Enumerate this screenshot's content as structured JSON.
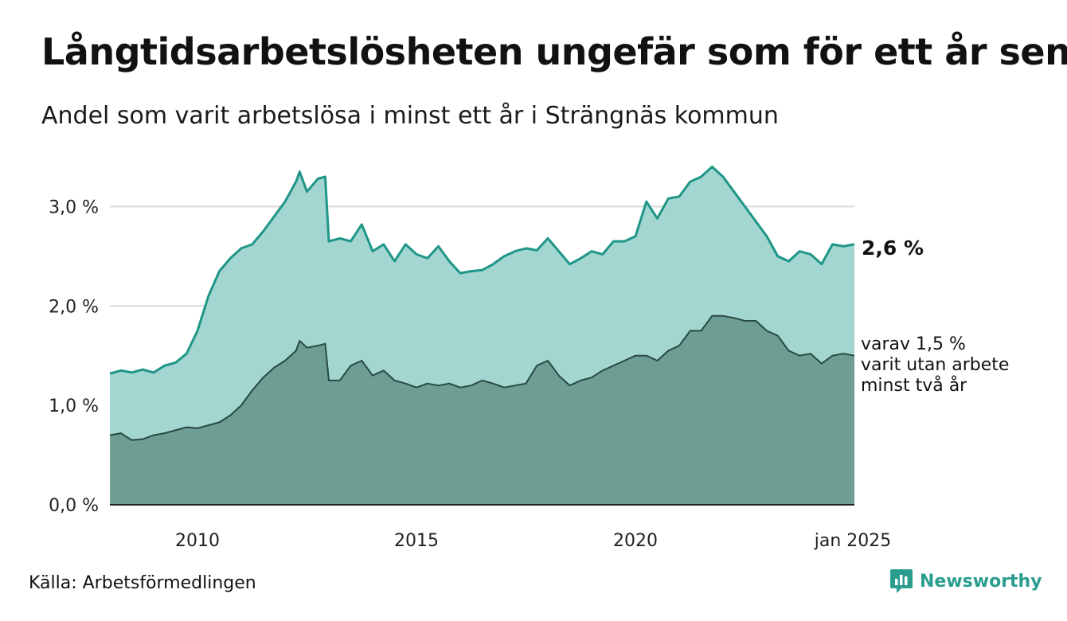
{
  "title": "Långtidsarbetslösheten ungefär som för ett år sen",
  "subtitle": "Andel som varit arbetslösa i minst ett år i Strängnäs kommun",
  "source": "Källa: Arbetsförmedlingen",
  "brand": {
    "name": "Newsworthy",
    "icon": "bar-chart-logo-icon",
    "color": "#2a9d8f"
  },
  "colors": {
    "total_line": "#1f9688",
    "total_fill": "#a3d6d0",
    "long_line": "#274a43",
    "long_fill": "#6e9d94",
    "grid": "#d9d9d9",
    "axis": "#222222"
  },
  "chart_data": {
    "type": "area",
    "xlim": [
      "2008-01",
      "2025-01"
    ],
    "ylim": [
      0,
      3.5
    ],
    "yticks": [
      0,
      1,
      2,
      3
    ],
    "ytick_labels": [
      "0,0 %",
      "1,0 %",
      "2,0 %",
      "3,0 %"
    ],
    "xticks": [
      "2010-01",
      "2015-01",
      "2020-01",
      "2025-01"
    ],
    "xtick_labels": [
      "2010",
      "2015",
      "2020",
      "jan 2025"
    ],
    "grid": true,
    "series": [
      {
        "key": "total",
        "end_label": "2,6 %",
        "points": [
          [
            "2008-01",
            1.32
          ],
          [
            "2008-04",
            1.35
          ],
          [
            "2008-07",
            1.33
          ],
          [
            "2008-10",
            1.36
          ],
          [
            "2009-01",
            1.33
          ],
          [
            "2009-04",
            1.4
          ],
          [
            "2009-07",
            1.43
          ],
          [
            "2009-10",
            1.52
          ],
          [
            "2010-01",
            1.75
          ],
          [
            "2010-04",
            2.1
          ],
          [
            "2010-07",
            2.35
          ],
          [
            "2010-10",
            2.48
          ],
          [
            "2011-01",
            2.58
          ],
          [
            "2011-04",
            2.62
          ],
          [
            "2011-07",
            2.75
          ],
          [
            "2011-10",
            2.9
          ],
          [
            "2012-01",
            3.05
          ],
          [
            "2012-04",
            3.25
          ],
          [
            "2012-05",
            3.35
          ],
          [
            "2012-07",
            3.15
          ],
          [
            "2012-10",
            3.28
          ],
          [
            "2012-12",
            3.3
          ],
          [
            "2013-01",
            2.65
          ],
          [
            "2013-04",
            2.68
          ],
          [
            "2013-07",
            2.65
          ],
          [
            "2013-10",
            2.82
          ],
          [
            "2014-01",
            2.55
          ],
          [
            "2014-04",
            2.62
          ],
          [
            "2014-07",
            2.45
          ],
          [
            "2014-10",
            2.62
          ],
          [
            "2015-01",
            2.52
          ],
          [
            "2015-04",
            2.48
          ],
          [
            "2015-07",
            2.6
          ],
          [
            "2015-10",
            2.45
          ],
          [
            "2016-01",
            2.33
          ],
          [
            "2016-04",
            2.35
          ],
          [
            "2016-07",
            2.36
          ],
          [
            "2016-10",
            2.42
          ],
          [
            "2017-01",
            2.5
          ],
          [
            "2017-04",
            2.55
          ],
          [
            "2017-07",
            2.58
          ],
          [
            "2017-10",
            2.56
          ],
          [
            "2018-01",
            2.68
          ],
          [
            "2018-04",
            2.55
          ],
          [
            "2018-07",
            2.42
          ],
          [
            "2018-10",
            2.48
          ],
          [
            "2019-01",
            2.55
          ],
          [
            "2019-04",
            2.52
          ],
          [
            "2019-07",
            2.65
          ],
          [
            "2019-10",
            2.65
          ],
          [
            "2020-01",
            2.7
          ],
          [
            "2020-04",
            3.05
          ],
          [
            "2020-07",
            2.88
          ],
          [
            "2020-10",
            3.08
          ],
          [
            "2021-01",
            3.1
          ],
          [
            "2021-04",
            3.25
          ],
          [
            "2021-07",
            3.3
          ],
          [
            "2021-10",
            3.4
          ],
          [
            "2022-01",
            3.3
          ],
          [
            "2022-04",
            3.15
          ],
          [
            "2022-07",
            3.0
          ],
          [
            "2022-10",
            2.85
          ],
          [
            "2023-01",
            2.7
          ],
          [
            "2023-04",
            2.5
          ],
          [
            "2023-07",
            2.45
          ],
          [
            "2023-10",
            2.55
          ],
          [
            "2024-01",
            2.52
          ],
          [
            "2024-04",
            2.42
          ],
          [
            "2024-07",
            2.62
          ],
          [
            "2024-10",
            2.6
          ],
          [
            "2025-01",
            2.62
          ]
        ]
      },
      {
        "key": "long",
        "end_label": [
          "varav 1,5 %",
          "varit utan arbete",
          "minst två år"
        ],
        "points": [
          [
            "2008-01",
            0.7
          ],
          [
            "2008-04",
            0.72
          ],
          [
            "2008-07",
            0.65
          ],
          [
            "2008-10",
            0.66
          ],
          [
            "2009-01",
            0.7
          ],
          [
            "2009-04",
            0.72
          ],
          [
            "2009-07",
            0.75
          ],
          [
            "2009-10",
            0.78
          ],
          [
            "2010-01",
            0.77
          ],
          [
            "2010-04",
            0.8
          ],
          [
            "2010-07",
            0.83
          ],
          [
            "2010-10",
            0.9
          ],
          [
            "2011-01",
            1.0
          ],
          [
            "2011-04",
            1.15
          ],
          [
            "2011-07",
            1.28
          ],
          [
            "2011-10",
            1.38
          ],
          [
            "2012-01",
            1.45
          ],
          [
            "2012-04",
            1.55
          ],
          [
            "2012-05",
            1.65
          ],
          [
            "2012-07",
            1.58
          ],
          [
            "2012-10",
            1.6
          ],
          [
            "2012-12",
            1.62
          ],
          [
            "2013-01",
            1.25
          ],
          [
            "2013-04",
            1.25
          ],
          [
            "2013-07",
            1.4
          ],
          [
            "2013-10",
            1.45
          ],
          [
            "2014-01",
            1.3
          ],
          [
            "2014-04",
            1.35
          ],
          [
            "2014-07",
            1.25
          ],
          [
            "2014-10",
            1.22
          ],
          [
            "2015-01",
            1.18
          ],
          [
            "2015-04",
            1.22
          ],
          [
            "2015-07",
            1.2
          ],
          [
            "2015-10",
            1.22
          ],
          [
            "2016-01",
            1.18
          ],
          [
            "2016-04",
            1.2
          ],
          [
            "2016-07",
            1.25
          ],
          [
            "2016-10",
            1.22
          ],
          [
            "2017-01",
            1.18
          ],
          [
            "2017-04",
            1.2
          ],
          [
            "2017-07",
            1.22
          ],
          [
            "2017-10",
            1.4
          ],
          [
            "2018-01",
            1.45
          ],
          [
            "2018-04",
            1.3
          ],
          [
            "2018-07",
            1.2
          ],
          [
            "2018-10",
            1.25
          ],
          [
            "2019-01",
            1.28
          ],
          [
            "2019-04",
            1.35
          ],
          [
            "2019-07",
            1.4
          ],
          [
            "2019-10",
            1.45
          ],
          [
            "2020-01",
            1.5
          ],
          [
            "2020-04",
            1.5
          ],
          [
            "2020-07",
            1.45
          ],
          [
            "2020-10",
            1.55
          ],
          [
            "2021-01",
            1.6
          ],
          [
            "2021-04",
            1.75
          ],
          [
            "2021-07",
            1.75
          ],
          [
            "2021-10",
            1.9
          ],
          [
            "2022-01",
            1.9
          ],
          [
            "2022-04",
            1.88
          ],
          [
            "2022-07",
            1.85
          ],
          [
            "2022-10",
            1.85
          ],
          [
            "2023-01",
            1.75
          ],
          [
            "2023-04",
            1.7
          ],
          [
            "2023-07",
            1.55
          ],
          [
            "2023-10",
            1.5
          ],
          [
            "2024-01",
            1.52
          ],
          [
            "2024-04",
            1.42
          ],
          [
            "2024-07",
            1.5
          ],
          [
            "2024-10",
            1.52
          ],
          [
            "2025-01",
            1.5
          ]
        ]
      }
    ]
  }
}
